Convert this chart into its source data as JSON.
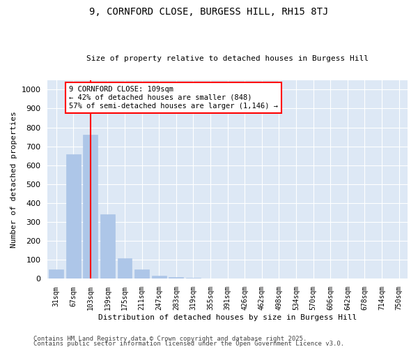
{
  "title1": "9, CORNFORD CLOSE, BURGESS HILL, RH15 8TJ",
  "title2": "Size of property relative to detached houses in Burgess Hill",
  "xlabel": "Distribution of detached houses by size in Burgess Hill",
  "ylabel": "Number of detached properties",
  "categories": [
    "31sqm",
    "67sqm",
    "103sqm",
    "139sqm",
    "175sqm",
    "211sqm",
    "247sqm",
    "283sqm",
    "319sqm",
    "355sqm",
    "391sqm",
    "426sqm",
    "462sqm",
    "498sqm",
    "534sqm",
    "570sqm",
    "606sqm",
    "642sqm",
    "678sqm",
    "714sqm",
    "750sqm"
  ],
  "values": [
    50,
    660,
    760,
    340,
    110,
    50,
    15,
    8,
    4,
    2,
    1,
    1,
    0,
    0,
    0,
    0,
    0,
    0,
    0,
    0,
    0
  ],
  "bar_color": "#adc6e8",
  "bar_edgecolor": "#adc6e8",
  "redline_index": 2,
  "annotation_text": "9 CORNFORD CLOSE: 109sqm\n← 42% of detached houses are smaller (848)\n57% of semi-detached houses are larger (1,146) →",
  "annotation_box_color": "white",
  "annotation_box_edgecolor": "red",
  "ylim": [
    0,
    1050
  ],
  "yticks": [
    0,
    100,
    200,
    300,
    400,
    500,
    600,
    700,
    800,
    900,
    1000
  ],
  "background_color": "#dde8f5",
  "footer1": "Contains HM Land Registry data © Crown copyright and database right 2025.",
  "footer2": "Contains public sector information licensed under the Open Government Licence v3.0."
}
